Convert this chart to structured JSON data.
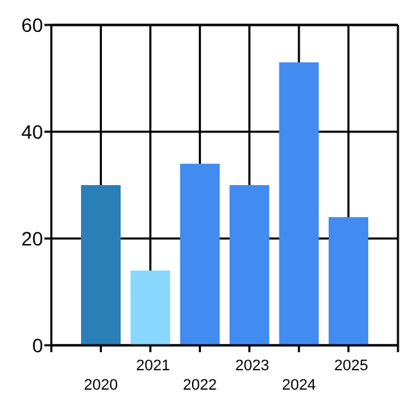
{
  "chart_data": {
    "type": "bar",
    "categories": [
      "2020",
      "2021",
      "2022",
      "2023",
      "2024",
      "2025"
    ],
    "values": [
      30,
      14,
      34,
      30,
      53,
      24
    ],
    "colors": [
      "#2a7fb6",
      "#88d8ff",
      "#428bf0",
      "#428bf0",
      "#428bf0",
      "#428bf0"
    ],
    "ylim": [
      0,
      60
    ],
    "yticks": [
      0,
      20,
      40,
      60
    ],
    "grid": true
  }
}
